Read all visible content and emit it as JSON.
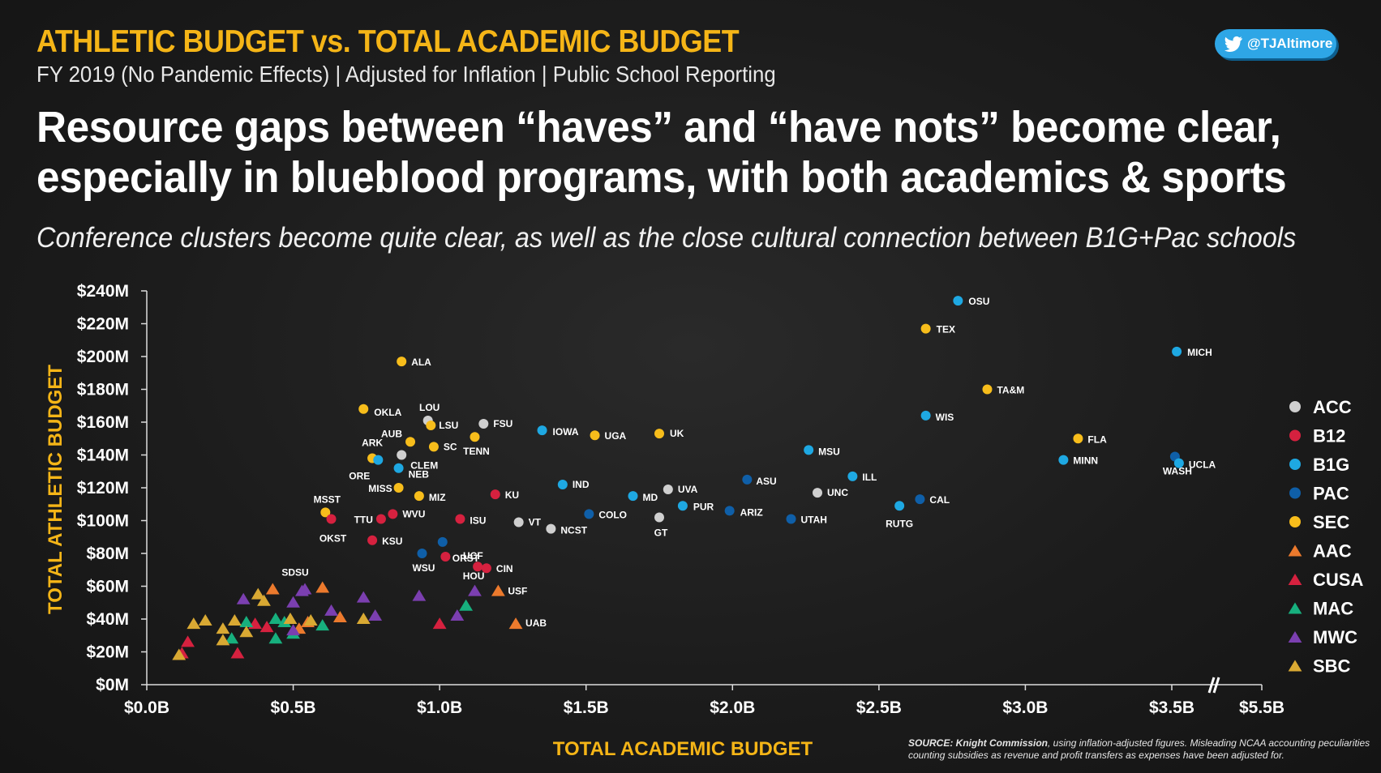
{
  "header": {
    "title": "ATHLETIC BUDGET vs. TOTAL ACADEMIC BUDGET",
    "subtitle": "FY 2019 (No Pandemic Effects)  |  Adjusted for Inflation  |  Public School Reporting",
    "handle": "@TJAltimore"
  },
  "headline": "Resource gaps between “haves” and “have nots” become clear, especially in blueblood programs, with both academics & sports",
  "dek": "Conference clusters become quite clear, as well as the close cultural connection between B1G+Pac schools",
  "source": {
    "label": "SOURCE:  Knight Commission",
    "text": ", using inflation-adjusted figures.  Misleading NCAA accounting peculiarities counting subsidies as revenue and profit transfers as expenses have been adjusted for."
  },
  "colors": {
    "accent": "#f5b517",
    "ACC": "#cfcfcf",
    "B12": "#d6213f",
    "B1G": "#1ea8e2",
    "PAC": "#0f5fa8",
    "SEC": "#f7bd1b",
    "AAC": "#ec7a2d",
    "CUSA": "#d6213f",
    "MAC": "#17b07e",
    "MWC": "#7b3fb0",
    "SBC": "#d9a933"
  },
  "chart_data": {
    "type": "scatter",
    "xlabel": "TOTAL ACADEMIC BUDGET",
    "ylabel": "TOTAL ATHLETIC BUDGET",
    "x_unit": "billions USD",
    "y_unit": "millions USD",
    "xlim": [
      0,
      5.5
    ],
    "ylim": [
      0,
      240
    ],
    "x_axis_break": "between 3.5B and 5.5B",
    "x_ticks": [
      {
        "value": 0,
        "label": "$0.0B"
      },
      {
        "value": 0.5,
        "label": "$0.5B"
      },
      {
        "value": 1.0,
        "label": "$1.0B"
      },
      {
        "value": 1.5,
        "label": "$1.5B"
      },
      {
        "value": 2.0,
        "label": "$2.0B"
      },
      {
        "value": 2.5,
        "label": "$2.5B"
      },
      {
        "value": 3.0,
        "label": "$3.0B"
      },
      {
        "value": 3.5,
        "label": "$3.5B"
      },
      {
        "value": 5.5,
        "label": "$5.5B"
      }
    ],
    "y_ticks": [
      {
        "value": 0,
        "label": "$0M"
      },
      {
        "value": 20,
        "label": "$20M"
      },
      {
        "value": 40,
        "label": "$40M"
      },
      {
        "value": 60,
        "label": "$60M"
      },
      {
        "value": 80,
        "label": "$80M"
      },
      {
        "value": 100,
        "label": "$100M"
      },
      {
        "value": 120,
        "label": "$120M"
      },
      {
        "value": 140,
        "label": "$140M"
      },
      {
        "value": 160,
        "label": "$160M"
      },
      {
        "value": 180,
        "label": "$180M"
      },
      {
        "value": 200,
        "label": "$200M"
      },
      {
        "value": 220,
        "label": "$220M"
      },
      {
        "value": 240,
        "label": "$240M"
      }
    ],
    "legend": [
      {
        "name": "ACC",
        "shape": "circle"
      },
      {
        "name": "B12",
        "shape": "circle"
      },
      {
        "name": "B1G",
        "shape": "circle"
      },
      {
        "name": "PAC",
        "shape": "circle"
      },
      {
        "name": "SEC",
        "shape": "circle"
      },
      {
        "name": "AAC",
        "shape": "triangle"
      },
      {
        "name": "CUSA",
        "shape": "triangle"
      },
      {
        "name": "MAC",
        "shape": "triangle"
      },
      {
        "name": "MWC",
        "shape": "triangle"
      },
      {
        "name": "SBC",
        "shape": "triangle"
      }
    ],
    "legend_position": "right",
    "points": [
      {
        "label": "OSU",
        "conf": "B1G",
        "x": 2.77,
        "y": 234
      },
      {
        "label": "TEX",
        "conf": "SEC",
        "x": 2.66,
        "y": 217
      },
      {
        "label": "MICH",
        "conf": "B1G",
        "x": 3.61,
        "y": 203
      },
      {
        "label": "ALA",
        "conf": "SEC",
        "x": 0.87,
        "y": 197
      },
      {
        "label": "TA&M",
        "conf": "SEC",
        "x": 2.87,
        "y": 180
      },
      {
        "label": "OKLA",
        "conf": "SEC",
        "x": 0.74,
        "y": 168
      },
      {
        "label": "WIS",
        "conf": "B1G",
        "x": 2.66,
        "y": 164
      },
      {
        "label": "LOU",
        "conf": "ACC",
        "x": 0.96,
        "y": 161
      },
      {
        "label": "LSU",
        "conf": "SEC",
        "x": 0.97,
        "y": 158
      },
      {
        "label": "FSU",
        "conf": "ACC",
        "x": 1.15,
        "y": 159
      },
      {
        "label": "AUB",
        "conf": "SEC",
        "x": 0.9,
        "y": 148
      },
      {
        "label": "IOWA",
        "conf": "B1G",
        "x": 1.35,
        "y": 155
      },
      {
        "label": "UGA",
        "conf": "SEC",
        "x": 1.53,
        "y": 152
      },
      {
        "label": "UK",
        "conf": "SEC",
        "x": 1.75,
        "y": 153
      },
      {
        "label": "TENN",
        "conf": "SEC",
        "x": 1.12,
        "y": 151
      },
      {
        "label": "FLA",
        "conf": "SEC",
        "x": 3.18,
        "y": 150
      },
      {
        "label": "SC",
        "conf": "SEC",
        "x": 0.98,
        "y": 145
      },
      {
        "label": "ARK",
        "conf": "SEC",
        "x": 0.77,
        "y": 138
      },
      {
        "label": "CLEM",
        "conf": "ACC",
        "x": 0.87,
        "y": 140
      },
      {
        "label": "MSU",
        "conf": "B1G",
        "x": 2.26,
        "y": 143
      },
      {
        "label": "MINN",
        "conf": "B1G",
        "x": 3.13,
        "y": 137
      },
      {
        "label": "WASH",
        "conf": "PAC",
        "x": 3.57,
        "y": 139
      },
      {
        "label": "UCLA",
        "conf": "B1G",
        "x": 3.66,
        "y": 135
      },
      {
        "label": "ORE",
        "conf": "B1G",
        "x": 0.79,
        "y": 137
      },
      {
        "label": "NEB",
        "conf": "B1G",
        "x": 0.86,
        "y": 132
      },
      {
        "label": "ILL",
        "conf": "B1G",
        "x": 2.41,
        "y": 127
      },
      {
        "label": "ASU",
        "conf": "PAC",
        "x": 2.05,
        "y": 125
      },
      {
        "label": "MISS",
        "conf": "SEC",
        "x": 0.86,
        "y": 120
      },
      {
        "label": "IND",
        "conf": "B1G",
        "x": 1.42,
        "y": 122
      },
      {
        "label": "UVA",
        "conf": "ACC",
        "x": 1.78,
        "y": 119
      },
      {
        "label": "UNC",
        "conf": "ACC",
        "x": 2.29,
        "y": 117
      },
      {
        "label": "MIZ",
        "conf": "SEC",
        "x": 0.93,
        "y": 115
      },
      {
        "label": "KU",
        "conf": "B12",
        "x": 1.19,
        "y": 116
      },
      {
        "label": "MD",
        "conf": "B1G",
        "x": 1.66,
        "y": 115
      },
      {
        "label": "CAL",
        "conf": "PAC",
        "x": 2.64,
        "y": 113
      },
      {
        "label": "MSST",
        "conf": "SEC",
        "x": 0.61,
        "y": 105
      },
      {
        "label": "WVU",
        "conf": "B12",
        "x": 0.84,
        "y": 104
      },
      {
        "label": "PUR",
        "conf": "B1G",
        "x": 1.83,
        "y": 109
      },
      {
        "label": "RUTG",
        "conf": "B1G",
        "x": 2.57,
        "y": 109
      },
      {
        "label": "COLO",
        "conf": "PAC",
        "x": 1.51,
        "y": 104
      },
      {
        "label": "ARIZ",
        "conf": "PAC",
        "x": 1.99,
        "y": 106
      },
      {
        "label": "UTAH",
        "conf": "PAC",
        "x": 2.2,
        "y": 101
      },
      {
        "label": "OKST",
        "conf": "B12",
        "x": 0.63,
        "y": 101
      },
      {
        "label": "TTU",
        "conf": "B12",
        "x": 0.8,
        "y": 101
      },
      {
        "label": "ISU",
        "conf": "B12",
        "x": 1.07,
        "y": 101
      },
      {
        "label": "VT",
        "conf": "ACC",
        "x": 1.27,
        "y": 99
      },
      {
        "label": "GT",
        "conf": "ACC",
        "x": 1.75,
        "y": 102
      },
      {
        "label": "NCST",
        "conf": "ACC",
        "x": 1.38,
        "y": 95
      },
      {
        "label": "ORST",
        "conf": "PAC",
        "x": 1.01,
        "y": 87
      },
      {
        "label": "KSU",
        "conf": "B12",
        "x": 0.77,
        "y": 88
      },
      {
        "label": "WSU",
        "conf": "PAC",
        "x": 0.94,
        "y": 80
      },
      {
        "label": "UCF",
        "conf": "B12",
        "x": 1.02,
        "y": 78
      },
      {
        "label": "HOU",
        "conf": "B12",
        "x": 1.13,
        "y": 72
      },
      {
        "label": "CIN",
        "conf": "B12",
        "x": 1.16,
        "y": 71
      },
      {
        "label": "USF",
        "conf": "AAC",
        "x": 1.2,
        "y": 57
      },
      {
        "label": "UAB",
        "conf": "AAC",
        "x": 1.26,
        "y": 37
      },
      {
        "label": "SDSU",
        "conf": "MWC",
        "x": 0.54,
        "y": 58
      },
      {
        "label": "",
        "conf": "AAC",
        "x": 0.43,
        "y": 58
      },
      {
        "label": "",
        "conf": "AAC",
        "x": 0.6,
        "y": 59
      },
      {
        "label": "",
        "conf": "AAC",
        "x": 0.55,
        "y": 38
      },
      {
        "label": "",
        "conf": "AAC",
        "x": 0.66,
        "y": 41
      },
      {
        "label": "",
        "conf": "AAC",
        "x": 0.52,
        "y": 34
      },
      {
        "label": "",
        "conf": "CUSA",
        "x": 0.12,
        "y": 19
      },
      {
        "label": "",
        "conf": "CUSA",
        "x": 0.14,
        "y": 26
      },
      {
        "label": "",
        "conf": "CUSA",
        "x": 0.31,
        "y": 19
      },
      {
        "label": "",
        "conf": "CUSA",
        "x": 0.41,
        "y": 35
      },
      {
        "label": "",
        "conf": "CUSA",
        "x": 0.37,
        "y": 37
      },
      {
        "label": "",
        "conf": "CUSA",
        "x": 1.0,
        "y": 37
      },
      {
        "label": "",
        "conf": "MAC",
        "x": 0.34,
        "y": 38
      },
      {
        "label": "",
        "conf": "MAC",
        "x": 0.44,
        "y": 40
      },
      {
        "label": "",
        "conf": "MAC",
        "x": 0.47,
        "y": 38
      },
      {
        "label": "",
        "conf": "MAC",
        "x": 0.44,
        "y": 28
      },
      {
        "label": "",
        "conf": "MAC",
        "x": 0.5,
        "y": 31
      },
      {
        "label": "",
        "conf": "MAC",
        "x": 0.6,
        "y": 36
      },
      {
        "label": "",
        "conf": "MAC",
        "x": 1.09,
        "y": 48
      },
      {
        "label": "",
        "conf": "MAC",
        "x": 0.29,
        "y": 28
      },
      {
        "label": "",
        "conf": "MWC",
        "x": 0.33,
        "y": 52
      },
      {
        "label": "",
        "conf": "MWC",
        "x": 0.5,
        "y": 50
      },
      {
        "label": "",
        "conf": "MWC",
        "x": 0.53,
        "y": 57
      },
      {
        "label": "",
        "conf": "MWC",
        "x": 0.63,
        "y": 45
      },
      {
        "label": "",
        "conf": "MWC",
        "x": 0.74,
        "y": 53
      },
      {
        "label": "",
        "conf": "MWC",
        "x": 0.78,
        "y": 42
      },
      {
        "label": "",
        "conf": "MWC",
        "x": 0.93,
        "y": 54
      },
      {
        "label": "",
        "conf": "MWC",
        "x": 1.06,
        "y": 42
      },
      {
        "label": "",
        "conf": "MWC",
        "x": 1.12,
        "y": 57
      },
      {
        "label": "",
        "conf": "MWC",
        "x": 0.5,
        "y": 33
      },
      {
        "label": "",
        "conf": "SBC",
        "x": 0.11,
        "y": 18
      },
      {
        "label": "",
        "conf": "SBC",
        "x": 0.16,
        "y": 37
      },
      {
        "label": "",
        "conf": "SBC",
        "x": 0.2,
        "y": 39
      },
      {
        "label": "",
        "conf": "SBC",
        "x": 0.26,
        "y": 34
      },
      {
        "label": "",
        "conf": "SBC",
        "x": 0.26,
        "y": 27
      },
      {
        "label": "",
        "conf": "SBC",
        "x": 0.3,
        "y": 39
      },
      {
        "label": "",
        "conf": "SBC",
        "x": 0.34,
        "y": 32
      },
      {
        "label": "",
        "conf": "SBC",
        "x": 0.38,
        "y": 55
      },
      {
        "label": "",
        "conf": "SBC",
        "x": 0.4,
        "y": 51
      },
      {
        "label": "",
        "conf": "SBC",
        "x": 0.49,
        "y": 40
      },
      {
        "label": "",
        "conf": "SBC",
        "x": 0.56,
        "y": 39
      },
      {
        "label": "",
        "conf": "SBC",
        "x": 0.74,
        "y": 40
      }
    ]
  }
}
